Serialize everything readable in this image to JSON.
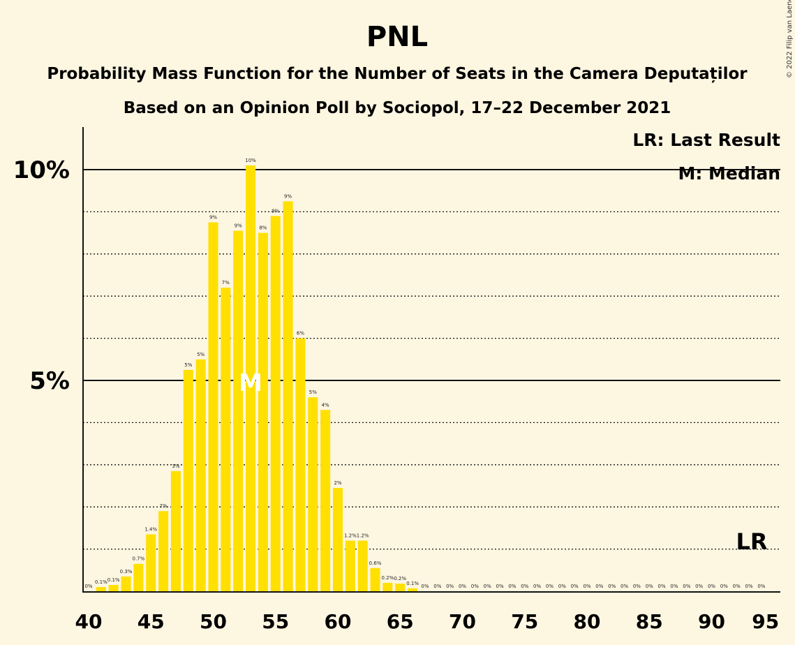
{
  "chart_data": {
    "type": "bar",
    "title": "PNL",
    "subtitle": "Probability Mass Function for the Number of Seats in the Camera Deputaților",
    "subtitle2": "Based on an Opinion Poll by Sociopol, 17–22 December 2021",
    "copyright": "© 2022 Filip van Laenen",
    "legend": [
      "LR: Last Result",
      "M: Median"
    ],
    "legend_placement": "top-right",
    "ylim": [
      0,
      11
    ],
    "yticks": [
      {
        "value": 5,
        "label": "5%"
      },
      {
        "value": 10,
        "label": "10%"
      }
    ],
    "ygrid_dotted": [
      1,
      2,
      3,
      4,
      6,
      7,
      8,
      9
    ],
    "xlim": [
      40,
      95
    ],
    "xticks": [
      40,
      45,
      50,
      55,
      60,
      65,
      70,
      75,
      80,
      85,
      90,
      95
    ],
    "bar_color": "#ffe000",
    "median_seat": 53,
    "median_label": "M",
    "last_result_seat": 93,
    "last_result_label": "LR",
    "bars": [
      {
        "x": 40,
        "value": 0.0,
        "label": "0%"
      },
      {
        "x": 41,
        "value": 0.1,
        "label": "0.1%"
      },
      {
        "x": 42,
        "value": 0.15,
        "label": "0.1%"
      },
      {
        "x": 43,
        "value": 0.35,
        "label": "0.3%"
      },
      {
        "x": 44,
        "value": 0.65,
        "label": "0.7%"
      },
      {
        "x": 45,
        "value": 1.35,
        "label": "1.4%"
      },
      {
        "x": 46,
        "value": 1.9,
        "label": "2%"
      },
      {
        "x": 47,
        "value": 2.85,
        "label": "3%"
      },
      {
        "x": 48,
        "value": 5.25,
        "label": "5%"
      },
      {
        "x": 49,
        "value": 5.5,
        "label": "5%"
      },
      {
        "x": 50,
        "value": 8.75,
        "label": "9%"
      },
      {
        "x": 51,
        "value": 7.2,
        "label": "7%"
      },
      {
        "x": 52,
        "value": 8.55,
        "label": "9%"
      },
      {
        "x": 53,
        "value": 10.1,
        "label": "10%"
      },
      {
        "x": 54,
        "value": 8.5,
        "label": "8%"
      },
      {
        "x": 55,
        "value": 8.9,
        "label": "9%"
      },
      {
        "x": 56,
        "value": 9.25,
        "label": "9%"
      },
      {
        "x": 57,
        "value": 6.0,
        "label": "6%"
      },
      {
        "x": 58,
        "value": 4.6,
        "label": "5%"
      },
      {
        "x": 59,
        "value": 4.3,
        "label": "4%"
      },
      {
        "x": 60,
        "value": 2.45,
        "label": "2%"
      },
      {
        "x": 61,
        "value": 1.2,
        "label": "1.2%"
      },
      {
        "x": 62,
        "value": 1.2,
        "label": "1.2%"
      },
      {
        "x": 63,
        "value": 0.55,
        "label": "0.6%"
      },
      {
        "x": 64,
        "value": 0.2,
        "label": "0.2%"
      },
      {
        "x": 65,
        "value": 0.18,
        "label": "0.2%"
      },
      {
        "x": 66,
        "value": 0.07,
        "label": "0.1%"
      },
      {
        "x": 67,
        "value": 0.0,
        "label": "0%"
      },
      {
        "x": 68,
        "value": 0.0,
        "label": "0%"
      },
      {
        "x": 69,
        "value": 0.0,
        "label": "0%"
      },
      {
        "x": 70,
        "value": 0.0,
        "label": "0%"
      },
      {
        "x": 71,
        "value": 0.0,
        "label": "0%"
      },
      {
        "x": 72,
        "value": 0.0,
        "label": "0%"
      },
      {
        "x": 73,
        "value": 0.0,
        "label": "0%"
      },
      {
        "x": 74,
        "value": 0.0,
        "label": "0%"
      },
      {
        "x": 75,
        "value": 0.0,
        "label": "0%"
      },
      {
        "x": 76,
        "value": 0.0,
        "label": "0%"
      },
      {
        "x": 77,
        "value": 0.0,
        "label": "0%"
      },
      {
        "x": 78,
        "value": 0.0,
        "label": "0%"
      },
      {
        "x": 79,
        "value": 0.0,
        "label": "0%"
      },
      {
        "x": 80,
        "value": 0.0,
        "label": "0%"
      },
      {
        "x": 81,
        "value": 0.0,
        "label": "0%"
      },
      {
        "x": 82,
        "value": 0.0,
        "label": "0%"
      },
      {
        "x": 83,
        "value": 0.0,
        "label": "0%"
      },
      {
        "x": 84,
        "value": 0.0,
        "label": "0%"
      },
      {
        "x": 85,
        "value": 0.0,
        "label": "0%"
      },
      {
        "x": 86,
        "value": 0.0,
        "label": "0%"
      },
      {
        "x": 87,
        "value": 0.0,
        "label": "0%"
      },
      {
        "x": 88,
        "value": 0.0,
        "label": "0%"
      },
      {
        "x": 89,
        "value": 0.0,
        "label": "0%"
      },
      {
        "x": 90,
        "value": 0.0,
        "label": "0%"
      },
      {
        "x": 91,
        "value": 0.0,
        "label": "0%"
      },
      {
        "x": 92,
        "value": 0.0,
        "label": "0%"
      },
      {
        "x": 93,
        "value": 0.0,
        "label": "0%"
      },
      {
        "x": 94,
        "value": 0.0,
        "label": "0%"
      }
    ]
  }
}
